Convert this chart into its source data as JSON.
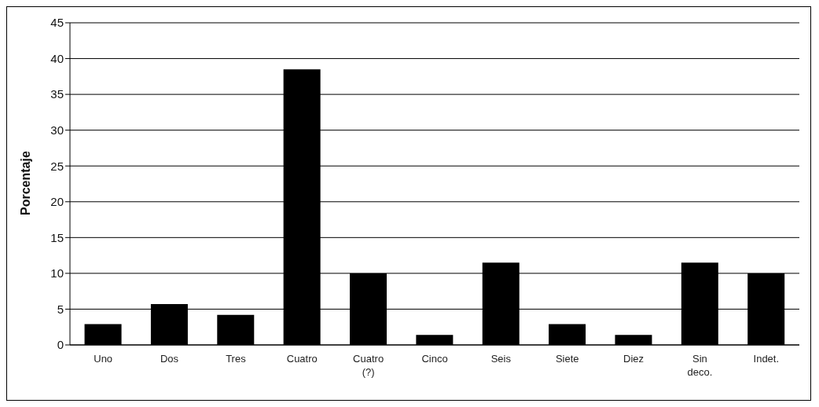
{
  "chart_data": {
    "type": "bar",
    "ylabel": "Porcentaje",
    "categories": [
      "Uno",
      "Dos",
      "Tres",
      "Cuatro",
      "Cuatro (?)",
      "Cinco",
      "Seis",
      "Siete",
      "Diez",
      "Sin deco.",
      "Indet."
    ],
    "values": [
      2.9,
      5.7,
      4.2,
      38.5,
      10,
      1.4,
      11.5,
      2.9,
      1.4,
      11.5,
      10
    ],
    "color": "#000000",
    "ylim": [
      0,
      45
    ],
    "yticks": [
      0,
      5,
      10,
      15,
      20,
      25,
      30,
      35,
      40,
      45
    ],
    "grid": "y"
  }
}
